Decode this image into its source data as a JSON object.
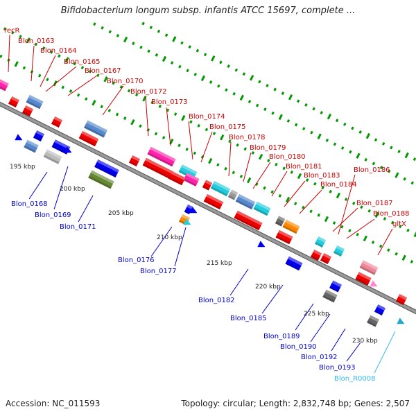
{
  "title": "Bifidobacterium longum subsp. infantis ATCC 15697, complete ...",
  "accession": "Accession: NC_011593",
  "summary": "Topology: circular; Length: 2,832,748 bp; Genes: 2,507",
  "colors": {
    "top_label": "#cc0000",
    "bottom_label": "#0000cc",
    "rna_label": "#33bbee",
    "backbone": "#999999",
    "tick": "#009900"
  },
  "kbp_ticks": [
    "195 kbp",
    "200 kbp",
    "205 kbp",
    "210 kbp",
    "215 kbp",
    "220 kbp",
    "225 kbp",
    "230 kbp"
  ],
  "top_genes": [
    "recR",
    "Blon_0163",
    "Blon_0164",
    "Blon_0165",
    "Blon_0167",
    "Blon_0170",
    "Blon_0172",
    "Blon_0173",
    "Blon_0174",
    "Blon_0175",
    "Blon_0178",
    "Blon_0179",
    "Blon_0180",
    "Blon_0181",
    "Blon_0183",
    "Blon_0184",
    "Blon_0186",
    "Blon_0187",
    "Blon_0188",
    "gltX"
  ],
  "bottom_genes": [
    "Blon_0168",
    "Blon_0169",
    "Blon_0171",
    "Blon_0176",
    "Blon_0177",
    "Blon_0182",
    "Blon_0185",
    "Blon_0189",
    "Blon_0190",
    "Blon_0192",
    "Blon_0193"
  ],
  "rna_genes": [
    "Blon_R0008"
  ]
}
